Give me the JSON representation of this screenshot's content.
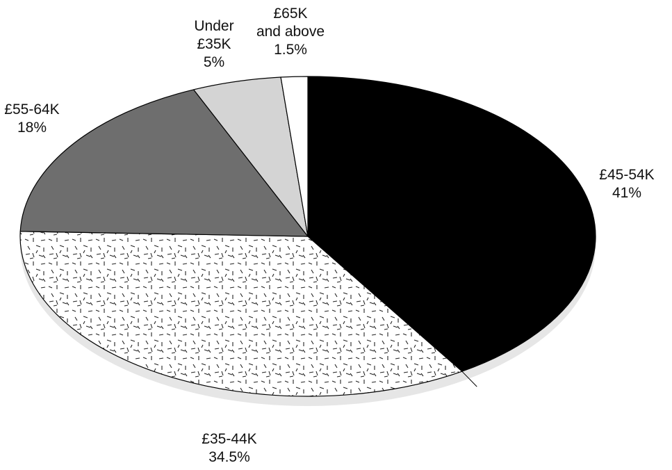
{
  "chart_data": {
    "type": "pie",
    "title": "",
    "slices": [
      {
        "name": "£45-54K",
        "label_lines": [
          "£45-54K"
        ],
        "value_label": "41%",
        "value": 41,
        "color": "#000000",
        "pattern": "solid"
      },
      {
        "name": "£35-44K",
        "label_lines": [
          "£35-44K"
        ],
        "value_label": "34.5%",
        "value": 34.5,
        "color": "#ffffff",
        "pattern": "dashes"
      },
      {
        "name": "£55-64K",
        "label_lines": [
          "£55-64K"
        ],
        "value_label": "18%",
        "value": 18,
        "color": "#6e6e6e",
        "pattern": "solid"
      },
      {
        "name": "Under £35K",
        "label_lines": [
          "Under",
          "£35K"
        ],
        "value_label": "5%",
        "value": 5,
        "color": "#d4d4d4",
        "pattern": "solid"
      },
      {
        "name": "£65K and above",
        "label_lines": [
          "£65K",
          "and above"
        ],
        "value_label": "1.5%",
        "value": 1.5,
        "color": "#ffffff",
        "pattern": "solid"
      }
    ],
    "style": "3d-tilted-pie",
    "shadow_color": "#e6e6e6",
    "edge_color": "#000000"
  }
}
